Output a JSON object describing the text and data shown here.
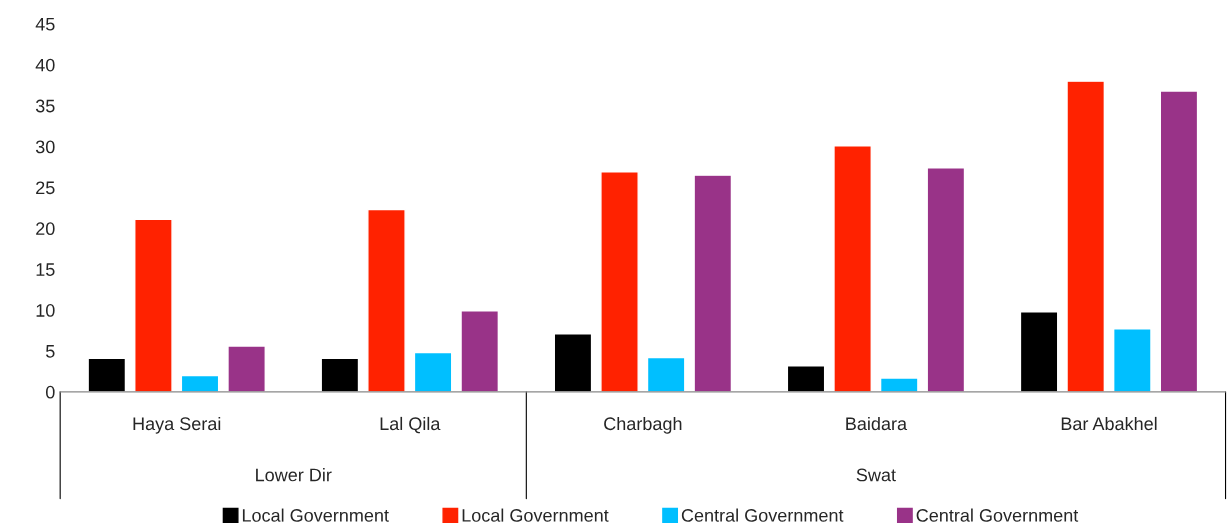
{
  "chart_data": {
    "type": "bar",
    "categories": [
      "Haya Serai",
      "Lal Qila",
      "Charbagh",
      "Baidara",
      "Bar Abakhel"
    ],
    "series": [
      {
        "name": "Local Government",
        "color": "#000000",
        "values": [
          4.1,
          4.1,
          7.1,
          3.2,
          9.8
        ]
      },
      {
        "name": "Local Government",
        "color": "#ff2200",
        "values": [
          21.1,
          22.3,
          26.9,
          30.1,
          38.0
        ]
      },
      {
        "name": "Central Government",
        "color": "#00bfff",
        "values": [
          2.0,
          4.8,
          4.2,
          1.7,
          7.7
        ]
      },
      {
        "name": "Central Government",
        "color": "#993388",
        "values": [
          5.6,
          9.9,
          26.5,
          27.4,
          36.8
        ]
      }
    ],
    "ylim": [
      0,
      45
    ],
    "yticks": [
      0,
      5,
      10,
      15,
      20,
      25,
      30,
      35,
      40,
      45
    ],
    "grid": false,
    "legend": "bottom",
    "annotations": [
      "Lower Dir",
      "Swat"
    ]
  }
}
